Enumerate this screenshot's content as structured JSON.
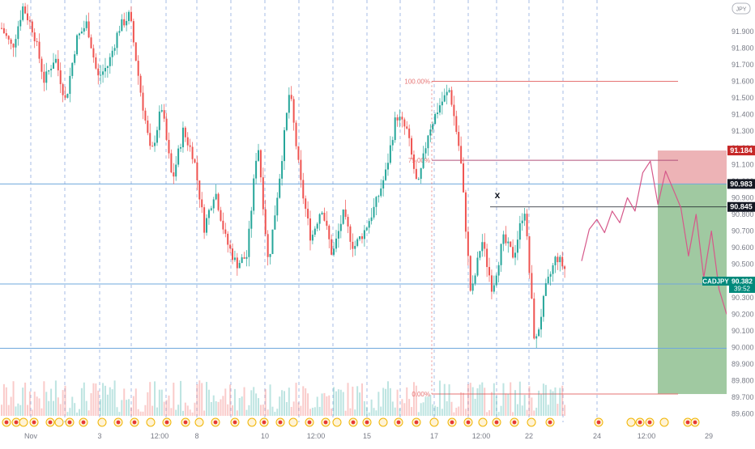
{
  "currency_badge": "JPY",
  "symbol_label": "CADJPY",
  "price_tag": "90.382",
  "countdown": "39:52",
  "marker_label": "x",
  "colors": {
    "up": "#26a69a",
    "down": "#ef5350",
    "horizontal_line": "#6fa8dc",
    "fib": "#e57373",
    "fib_mid": "#b0507a",
    "projection": "#d6588a",
    "stop_zone": "#e9a0a4",
    "target_zone": "#8fbf91",
    "grid": "#6d8fd6"
  },
  "chart_data": {
    "type": "candlestick",
    "y_range": [
      89.55,
      92.05
    ],
    "y_ticks": [
      "91.900",
      "91.800",
      "91.700",
      "91.600",
      "91.500",
      "91.400",
      "91.300",
      "91.200",
      "91.100",
      "91.000",
      "90.900",
      "90.800",
      "90.700",
      "90.600",
      "90.500",
      "90.400",
      "90.300",
      "90.200",
      "90.100",
      "90.000",
      "89.900",
      "89.800",
      "89.700",
      "89.600"
    ],
    "x_ticks": [
      "Nov",
      "3",
      "12:00",
      "8",
      "10",
      "12:00",
      "15",
      "17",
      "12:00",
      "22",
      "24",
      "12:00",
      "29"
    ],
    "horizontal_levels": [
      90.983,
      90.382,
      89.995
    ],
    "price_tags": [
      {
        "value": "91.184",
        "level": 91.184,
        "style": "red"
      },
      {
        "value": "90.983",
        "level": 90.983,
        "style": "black"
      },
      {
        "value": "90.845",
        "level": 90.845,
        "style": "black"
      }
    ],
    "fibonacci": [
      {
        "label": "100.00%",
        "level": 91.6
      },
      {
        "label": "75.00%",
        "level": 91.125
      },
      {
        "label": "0.00%",
        "level": 89.72
      }
    ],
    "marker_level": 90.845,
    "projection_path": [
      90.52,
      90.71,
      90.77,
      90.69,
      90.82,
      90.75,
      90.9,
      90.82,
      91.05,
      91.12,
      90.86,
      91.06,
      90.95,
      90.84,
      90.55,
      90.8,
      90.42,
      90.7,
      90.35,
      90.2
    ],
    "position": {
      "entry": 90.983,
      "stop": 91.184,
      "target": 89.72
    },
    "ohlc_anchor_series": [
      91.92,
      91.8,
      92.05,
      91.9,
      91.6,
      91.75,
      91.48,
      91.85,
      91.95,
      91.62,
      91.7,
      91.92,
      92.0,
      91.55,
      91.15,
      91.45,
      91.0,
      91.3,
      91.15,
      90.72,
      90.95,
      90.65,
      90.5,
      90.55,
      91.25,
      90.5,
      91.0,
      91.55,
      91.0,
      90.65,
      90.85,
      90.55,
      90.8,
      90.6,
      90.7,
      90.85,
      91.05,
      91.4,
      91.3,
      90.95,
      91.3,
      91.45,
      91.55,
      91.15,
      90.3,
      90.65,
      90.35,
      90.65,
      90.55,
      90.85,
      90.0,
      90.35,
      90.55,
      90.45
    ],
    "last_price": 90.382
  }
}
